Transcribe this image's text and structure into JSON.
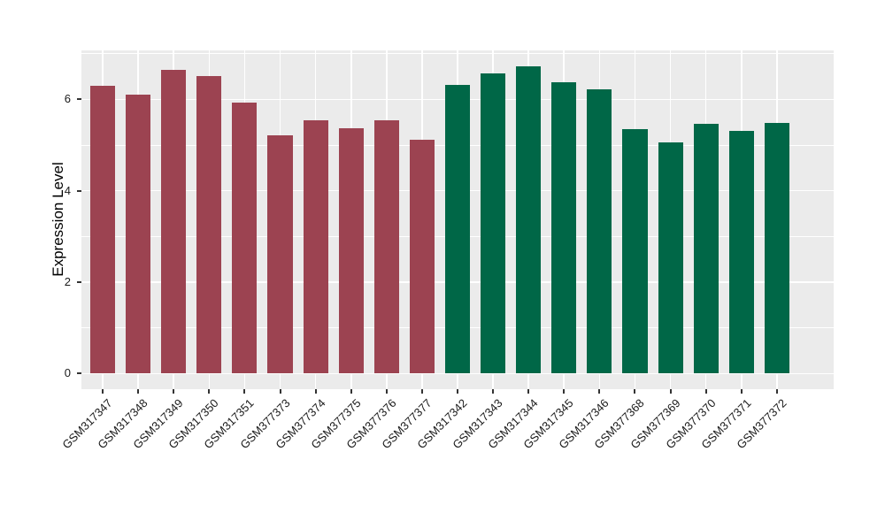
{
  "chart_data": {
    "type": "bar",
    "title": "",
    "xlabel": "",
    "ylabel": "Expression Level",
    "categories": [
      "GSM317347",
      "GSM317348",
      "GSM317349",
      "GSM317350",
      "GSM317351",
      "GSM377373",
      "GSM377374",
      "GSM377375",
      "GSM377376",
      "GSM377377",
      "GSM317342",
      "GSM317343",
      "GSM317344",
      "GSM317345",
      "GSM317346",
      "GSM377368",
      "GSM377369",
      "GSM377370",
      "GSM377371",
      "GSM377372"
    ],
    "values": [
      6.29,
      6.11,
      6.65,
      6.51,
      5.92,
      5.21,
      5.55,
      5.36,
      5.54,
      5.12,
      6.31,
      6.57,
      6.73,
      6.38,
      6.21,
      5.34,
      5.05,
      5.46,
      5.31,
      5.48
    ],
    "groups": [
      {
        "name": "group_1",
        "color": "#9C4351",
        "count": 10
      },
      {
        "name": "group_2",
        "color": "#006747",
        "count": 10
      }
    ],
    "ylim": [
      0,
      7.07
    ],
    "yticks": [
      0,
      2,
      4,
      6
    ],
    "yticks_minor": [
      1,
      3,
      5,
      7
    ],
    "grid": true,
    "legend": "none",
    "panel_bg": "#EBEBEB",
    "grid_color": "#FFFFFF",
    "tick_color": "#333333",
    "axis_text_color": "#1A1A1A"
  }
}
